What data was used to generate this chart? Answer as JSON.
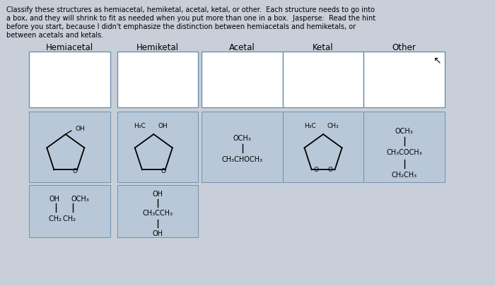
{
  "fig_bg": "#c8cfd8",
  "box_edge_color": "#7090b0",
  "white_box_color": "#ffffff",
  "struct_box_color": "#b8c8d8",
  "text_color": "#000000",
  "intro_text_line1": "Classify these structures as hemiacetal, hemiketal, acetal, ketal, or other.  Each structure needs to go into",
  "intro_text_line2": "a box, and they will shrink to fit as needed when you put more than one in a box.  Jasperse:  Read the hint",
  "intro_text_line3": "before you start, because I didn't emphasize the distinction between hemiacetals and hemiketals, or",
  "intro_text_line4": "between acetals and ketals.",
  "categories": [
    "Hemiacetal",
    "Hemiketal",
    "Acetal",
    "Ketal",
    "Other"
  ],
  "cat_font_size": 8.5,
  "struct_font_size": 7.0,
  "intro_font_size": 7.0
}
